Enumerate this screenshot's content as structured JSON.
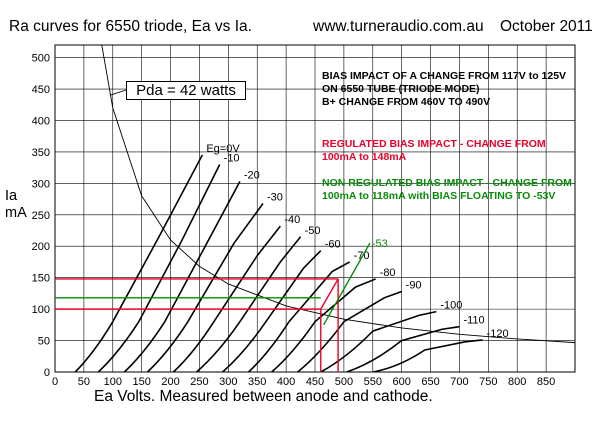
{
  "header": {
    "title": "Ra curves for 6550 triode, Ea vs Ia.",
    "url": "www.turneraudio.com.au",
    "date": "October 2011"
  },
  "chart_data": {
    "type": "line",
    "xlabel": "Ea Volts. Measured between anode and cathode.",
    "ylabel": [
      "Ia",
      "mA"
    ],
    "xlim": [
      0,
      900
    ],
    "ylim": [
      0,
      520
    ],
    "xticks": [
      0,
      50,
      100,
      150,
      200,
      250,
      300,
      350,
      400,
      450,
      500,
      550,
      600,
      650,
      700,
      750,
      800,
      850
    ],
    "yticks": [
      0,
      50,
      100,
      150,
      200,
      250,
      300,
      350,
      400,
      450,
      500
    ],
    "grid": true,
    "series": [
      {
        "name": "Eg=0V",
        "points": [
          [
            35,
            0
          ],
          [
            100,
            80
          ],
          [
            180,
            215
          ],
          [
            255,
            345
          ]
        ]
      },
      {
        "name": "-10",
        "points": [
          [
            75,
            0
          ],
          [
            145,
            80
          ],
          [
            220,
            210
          ],
          [
            285,
            330
          ]
        ]
      },
      {
        "name": "-20",
        "points": [
          [
            120,
            0
          ],
          [
            190,
            80
          ],
          [
            260,
            200
          ],
          [
            320,
            303
          ]
        ]
      },
      {
        "name": "-30",
        "points": [
          [
            160,
            0
          ],
          [
            230,
            80
          ],
          [
            310,
            205
          ],
          [
            360,
            268
          ]
        ]
      },
      {
        "name": "-40",
        "points": [
          [
            205,
            0
          ],
          [
            275,
            80
          ],
          [
            350,
            185
          ],
          [
            390,
            232
          ]
        ]
      },
      {
        "name": "-50",
        "points": [
          [
            245,
            0
          ],
          [
            320,
            80
          ],
          [
            390,
            175
          ],
          [
            425,
            215
          ]
        ]
      },
      {
        "name": "-60",
        "points": [
          [
            290,
            0
          ],
          [
            365,
            80
          ],
          [
            430,
            165
          ],
          [
            460,
            193
          ]
        ]
      },
      {
        "name": "-70",
        "points": [
          [
            335,
            0
          ],
          [
            405,
            80
          ],
          [
            480,
            160
          ],
          [
            510,
            175
          ]
        ]
      },
      {
        "name": "-80",
        "points": [
          [
            375,
            0
          ],
          [
            450,
            80
          ],
          [
            520,
            135
          ],
          [
            555,
            148
          ]
        ]
      },
      {
        "name": "-90",
        "points": [
          [
            420,
            0
          ],
          [
            500,
            80
          ],
          [
            570,
            118
          ],
          [
            600,
            128
          ]
        ]
      },
      {
        "name": "-100",
        "points": [
          [
            460,
            0
          ],
          [
            550,
            65
          ],
          [
            630,
            90
          ],
          [
            660,
            96
          ]
        ]
      },
      {
        "name": "-110",
        "points": [
          [
            505,
            0
          ],
          [
            600,
            50
          ],
          [
            670,
            68
          ],
          [
            700,
            72
          ]
        ]
      },
      {
        "name": "-120",
        "points": [
          [
            550,
            0
          ],
          [
            640,
            35
          ],
          [
            710,
            48
          ],
          [
            740,
            51
          ]
        ]
      }
    ],
    "pda_curve": {
      "watts": 42,
      "points": [
        [
          80,
          525
        ],
        [
          100,
          420
        ],
        [
          150,
          280
        ],
        [
          200,
          210
        ],
        [
          250,
          168
        ],
        [
          300,
          140
        ],
        [
          400,
          105
        ],
        [
          500,
          84
        ],
        [
          600,
          70
        ],
        [
          700,
          60
        ],
        [
          800,
          52.5
        ],
        [
          900,
          46.7
        ]
      ]
    },
    "bias_lines": {
      "red": {
        "v1": 460,
        "i1": 100,
        "v2": 490,
        "i2": 148
      },
      "green": {
        "i": 118,
        "v": 460,
        "line": [
          [
            465,
            75
          ],
          [
            545,
            205
          ]
        ],
        "curve_label": "-53"
      }
    },
    "annotations": {
      "pda": "Pda = 42 watts",
      "black_lines": [
        "BIAS IMPACT OF A CHANGE FROM 117V to 125V",
        "ON 6550 TUBE (TRIODE MODE)",
        "B+ CHANGE FROM 460V TO 490V"
      ],
      "red_lines": [
        "REGULATED BIAS IMPACT - CHANGE FROM",
        "100mA to 148mA"
      ],
      "green_lines": [
        "NON REGULATED BIAS IMPACT - CHANGE FROM",
        "100mA to 118mA with BIAS FLOATING TO -53V"
      ]
    },
    "colors": {
      "red": "#e8002a",
      "green": "#0a8a0a",
      "grid": "#000000"
    }
  }
}
